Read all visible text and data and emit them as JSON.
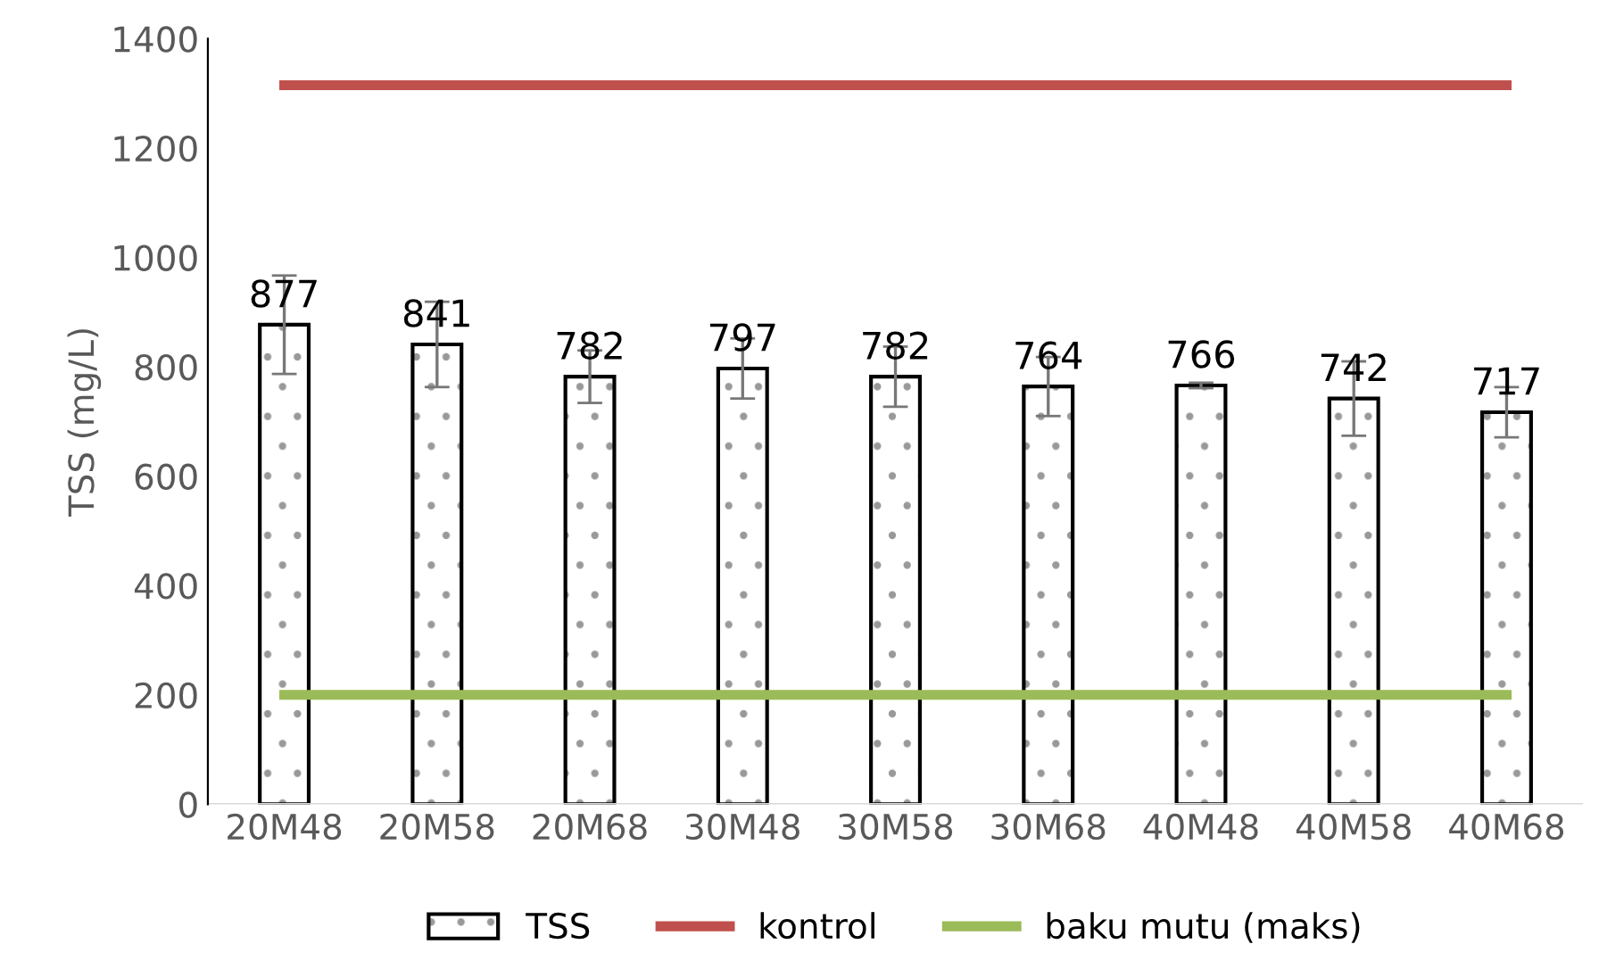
{
  "chart_data": {
    "type": "bar",
    "ylabel": "TSS (mg/L)",
    "categories": [
      "20M48",
      "20M58",
      "20M68",
      "30M48",
      "30M58",
      "30M68",
      "40M48",
      "40M58",
      "40M68"
    ],
    "series": [
      {
        "name": "TSS",
        "color": "#000000",
        "values": [
          877,
          841,
          782,
          797,
          782,
          764,
          766,
          742,
          717
        ],
        "errors": [
          90,
          78,
          48,
          55,
          55,
          54,
          5,
          68,
          46
        ],
        "data_labels": true
      },
      {
        "name": "kontrol",
        "type": "line",
        "color": "#c0504d",
        "values": [
          1315,
          1315,
          1315,
          1315,
          1315,
          1315,
          1315,
          1315,
          1315
        ]
      },
      {
        "name": "baku mutu (maks)",
        "type": "line",
        "color": "#9bbb59",
        "values": [
          200,
          200,
          200,
          200,
          200,
          200,
          200,
          200,
          200
        ]
      }
    ],
    "ylim": [
      0,
      1400
    ],
    "yticks": [
      0,
      200,
      400,
      600,
      800,
      1000,
      1200,
      1400
    ],
    "grid": false,
    "legend": "bottom",
    "marker": "none"
  }
}
